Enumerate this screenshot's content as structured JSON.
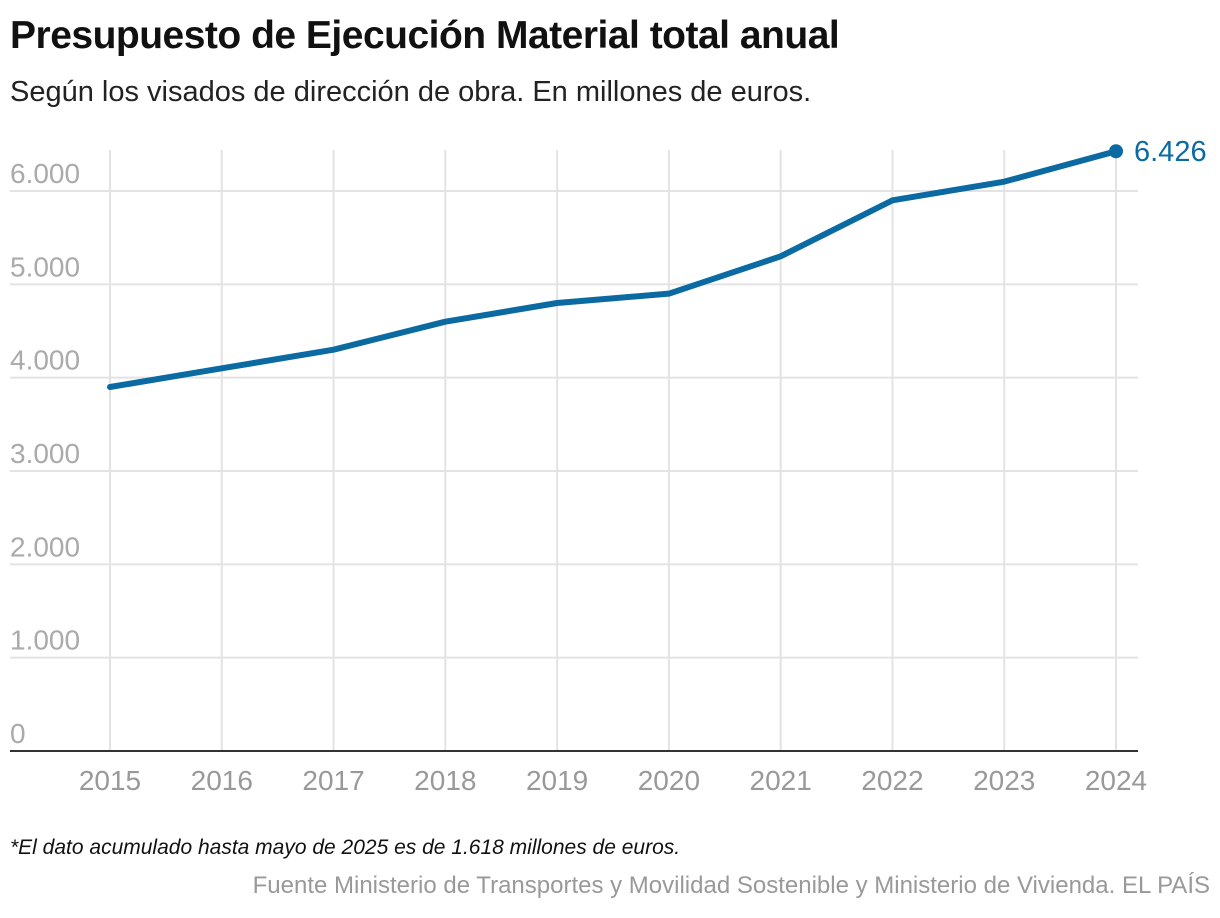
{
  "title": "Presupuesto de Ejecución Material total anual",
  "subtitle": "Según los visados de dirección de obra. En millones de euros.",
  "note": "*El dato acumulado hasta mayo de 2025 es de 1.618 millones de euros.",
  "source": "Fuente Ministerio de Transportes y Movilidad Sostenible y Ministerio de Vivienda. EL PAÍS",
  "chart_data": {
    "type": "line",
    "x": [
      "2015",
      "2016",
      "2017",
      "2018",
      "2019",
      "2020",
      "2021",
      "2022",
      "2023",
      "2024"
    ],
    "series": [
      {
        "values": [
          3900,
          4100,
          4300,
          4600,
          4800,
          4900,
          5300,
          5900,
          6100,
          6426
        ],
        "color": "#0a6aa1"
      }
    ],
    "yticks": [
      0,
      1000,
      2000,
      3000,
      4000,
      5000,
      6000
    ],
    "ytick_labels": [
      "0",
      "1.000",
      "2.000",
      "3.000",
      "4.000",
      "5.000",
      "6.000"
    ],
    "ylim": [
      0,
      6426
    ],
    "grid": true,
    "end_label": "6.426",
    "xlabel": "",
    "ylabel": ""
  }
}
